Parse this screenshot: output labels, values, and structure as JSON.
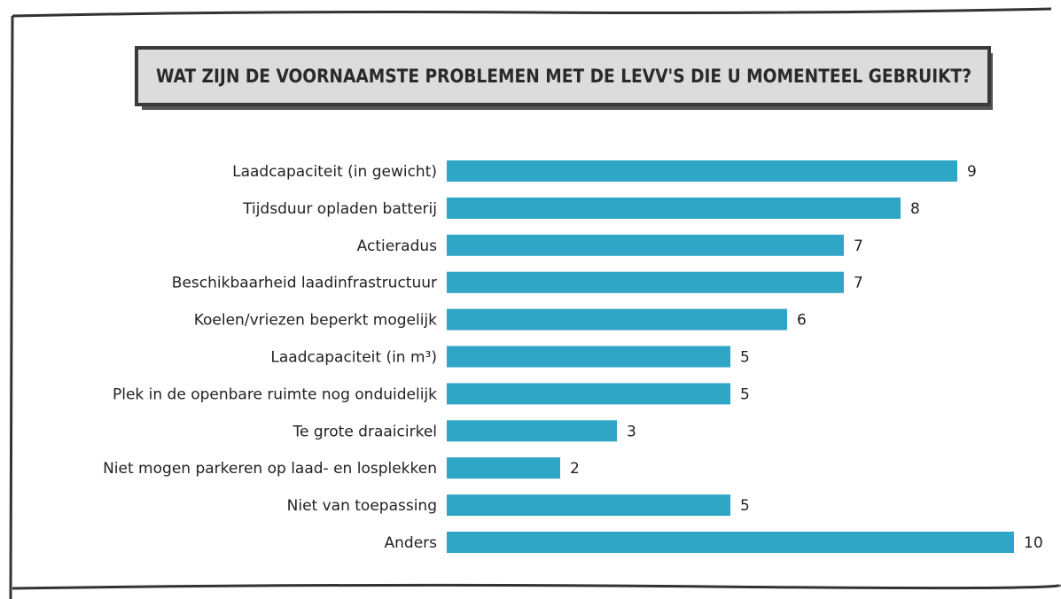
{
  "chart_data": {
    "type": "bar",
    "orientation": "horizontal",
    "title": "WAT ZIJN DE VOORNAAMSTE PROBLEMEN MET DE LEVV'S DIE U MOMENTEEL GEBRUIKT?",
    "categories": [
      "Laadcapaciteit (in gewicht)",
      "Tijdsduur opladen batterij",
      "Actieradus",
      "Beschikbaarheid laadinfrastructuur",
      "Koelen/vriezen beperkt mogelijk",
      "Laadcapaciteit (in m³)",
      "Plek in de openbare ruimte nog onduidelijk",
      "Te grote draaicirkel",
      "Niet mogen parkeren op laad- en losplekken",
      "Niet van toepassing",
      "Anders"
    ],
    "values": [
      9,
      8,
      7,
      7,
      6,
      5,
      5,
      3,
      2,
      5,
      10
    ],
    "color": "#2fa6c6",
    "xlim": [
      0,
      10
    ]
  }
}
